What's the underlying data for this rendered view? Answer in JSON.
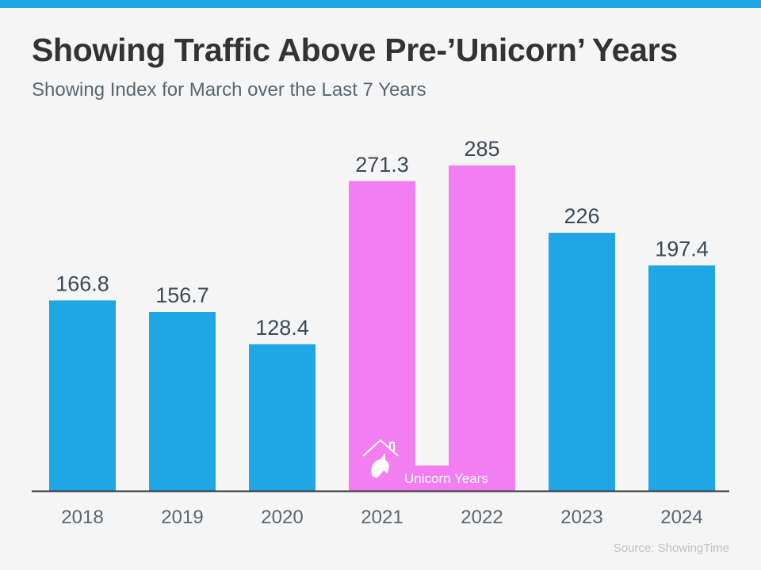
{
  "title": "Showing Traffic Above Pre-’Unicorn’ Years",
  "subtitle": "Showing Index for March over the Last 7 Years",
  "source": "Source: ShowingTime",
  "colors": {
    "background": "#f5f5f5",
    "top_bar": "#1fa6e4",
    "bar": "#1fa6e4",
    "unicorn_bar": "#f27ef2",
    "unicorn_band": "#f27ef2",
    "baseline": "#333333",
    "value_label": "#3b4a54",
    "tick_label": "#5a6770"
  },
  "chart_data": {
    "type": "bar",
    "categories": [
      "2018",
      "2019",
      "2020",
      "2021",
      "2022",
      "2023",
      "2024"
    ],
    "values": [
      166.8,
      156.7,
      128.4,
      271.3,
      285,
      226,
      197.4
    ],
    "value_labels": [
      "166.8",
      "156.7",
      "128.4",
      "271.3",
      "285",
      "226",
      "197.4"
    ],
    "highlighted_categories": [
      "2021",
      "2022"
    ],
    "highlight_label": "Unicorn Years",
    "highlight_icon": "unicorn-house-icon",
    "ylim": [
      0,
      285
    ],
    "xlabel": "",
    "ylabel": "",
    "grid": false,
    "legend": "none"
  }
}
